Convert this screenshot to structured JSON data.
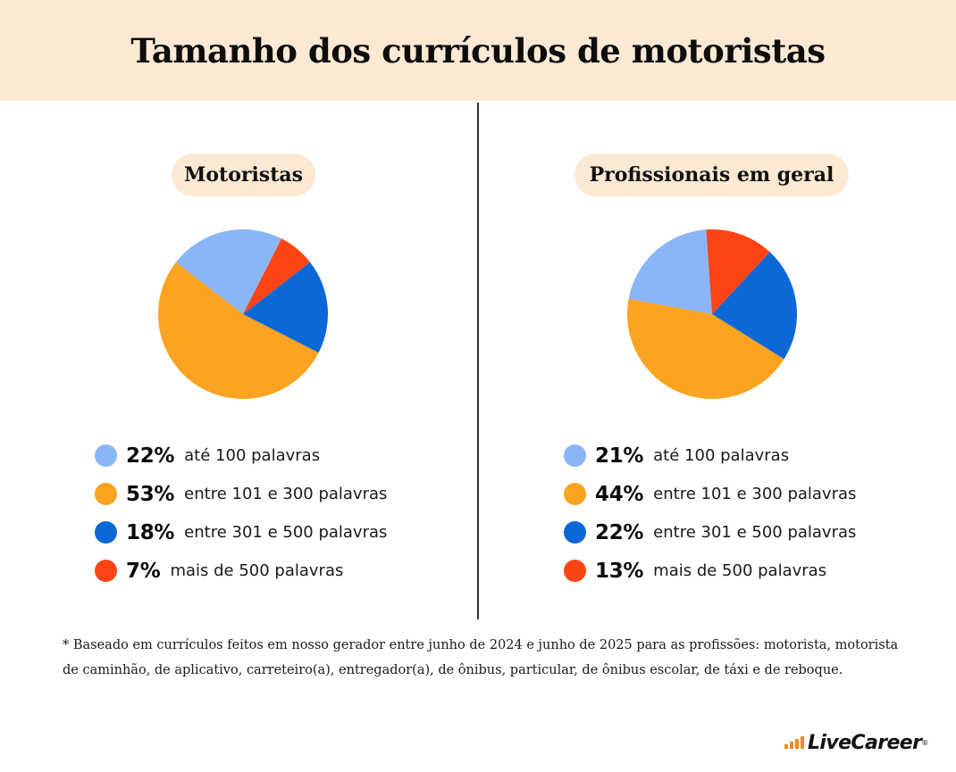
{
  "title": "Tamanho dos currículos de motoristas",
  "chart_data": [
    {
      "type": "pie",
      "title": "Motoristas",
      "slices": [
        {
          "label": "até 100 palavras",
          "value": 22,
          "display": "22%",
          "color": "#8ab6f9"
        },
        {
          "label": "entre 101 e 300 palavras",
          "value": 53,
          "display": "53%",
          "color": "#fca321"
        },
        {
          "label": "entre 301 e 500 palavras",
          "value": 18,
          "display": "18%",
          "color": "#0b68d6"
        },
        {
          "label": "mais de 500 palavras",
          "value": 7,
          "display": "7%",
          "color": "#fd4415"
        }
      ]
    },
    {
      "type": "pie",
      "title": "Profissionais em geral",
      "slices": [
        {
          "label": "até 100 palavras",
          "value": 21,
          "display": "21%",
          "color": "#8ab6f9"
        },
        {
          "label": "entre 101 e 300 palavras",
          "value": 44,
          "display": "44%",
          "color": "#fca321"
        },
        {
          "label": "entre 301 e 500 palavras",
          "value": 22,
          "display": "22%",
          "color": "#0b68d6"
        },
        {
          "label": "mais de 500 palavras",
          "value": 13,
          "display": "13%",
          "color": "#fd4415"
        }
      ]
    }
  ],
  "footnote": "* Baseado em currículos feitos em nosso gerador entre junho de 2024 e junho de 2025 para as profissões: motorista, motorista de caminhão, de aplicativo, carreteiro(a), entregador(a), de ônibus, particular, de ônibus escolar, de táxi e de reboque.",
  "brand": {
    "name": "LiveCareer",
    "mark": "®",
    "accent": "#f28a1a"
  }
}
